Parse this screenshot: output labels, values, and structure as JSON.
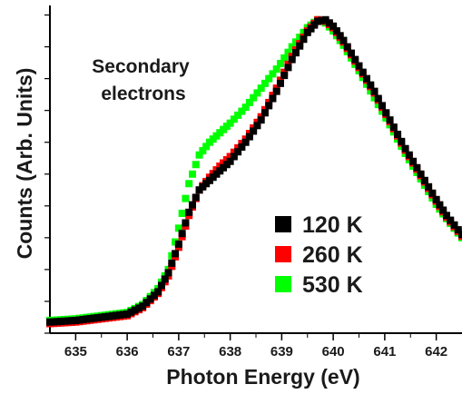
{
  "chart_data": {
    "type": "scatter",
    "title": "",
    "xlabel": "Photon Energy (eV)",
    "ylabel": "Counts (Arb. Units)",
    "xlim": [
      634.5,
      642.5
    ],
    "ylim": [
      0,
      1.03
    ],
    "x_ticks": [
      "635",
      "636",
      "637",
      "638",
      "639",
      "640",
      "641",
      "642"
    ],
    "y_tick_labels_shown": false,
    "annotation": [
      "Secondary",
      "electrons"
    ],
    "legend_position": "center-right",
    "series": [
      {
        "name": "120 K",
        "color": "#000000",
        "x": [
          634.5,
          635.0,
          635.5,
          636.0,
          636.3,
          636.6,
          636.8,
          637.0,
          637.2,
          637.4,
          637.6,
          637.8,
          638.0,
          638.3,
          638.6,
          638.9,
          639.2,
          639.5,
          639.7,
          639.85,
          640.0,
          640.2,
          640.5,
          640.8,
          641.1,
          641.4,
          641.7,
          642.0,
          642.2,
          642.5
        ],
        "y": [
          0.035,
          0.04,
          0.05,
          0.06,
          0.085,
          0.13,
          0.19,
          0.28,
          0.38,
          0.45,
          0.48,
          0.51,
          0.54,
          0.6,
          0.67,
          0.76,
          0.86,
          0.945,
          0.98,
          0.985,
          0.965,
          0.92,
          0.84,
          0.76,
          0.67,
          0.58,
          0.5,
          0.42,
          0.37,
          0.31
        ]
      },
      {
        "name": "260 K",
        "color": "#ff0000",
        "x": [
          634.5,
          635.0,
          635.5,
          636.0,
          636.3,
          636.6,
          636.8,
          637.0,
          637.2,
          637.4,
          637.6,
          637.8,
          638.0,
          638.3,
          638.6,
          638.9,
          639.2,
          639.5,
          639.7,
          639.85,
          640.0,
          640.2,
          640.5,
          640.8,
          641.1,
          641.4,
          641.7,
          642.0,
          642.2,
          642.5
        ],
        "y": [
          0.03,
          0.035,
          0.045,
          0.055,
          0.08,
          0.125,
          0.18,
          0.27,
          0.37,
          0.45,
          0.49,
          0.525,
          0.555,
          0.61,
          0.68,
          0.77,
          0.87,
          0.95,
          0.985,
          0.98,
          0.96,
          0.915,
          0.835,
          0.755,
          0.665,
          0.575,
          0.495,
          0.415,
          0.365,
          0.305
        ]
      },
      {
        "name": "530 K",
        "color": "#00ff00",
        "x": [
          634.5,
          635.0,
          635.5,
          636.0,
          636.3,
          636.6,
          636.8,
          637.0,
          637.2,
          637.4,
          637.6,
          637.8,
          638.0,
          638.3,
          638.6,
          638.9,
          639.2,
          639.5,
          639.7,
          639.85,
          640.0,
          640.2,
          640.5,
          640.8,
          641.1,
          641.4,
          641.7,
          642.0,
          642.2,
          642.5
        ],
        "y": [
          0.04,
          0.045,
          0.055,
          0.065,
          0.09,
          0.14,
          0.2,
          0.33,
          0.47,
          0.56,
          0.6,
          0.63,
          0.66,
          0.71,
          0.77,
          0.83,
          0.9,
          0.96,
          0.985,
          0.975,
          0.95,
          0.905,
          0.825,
          0.74,
          0.655,
          0.565,
          0.485,
          0.405,
          0.36,
          0.3
        ]
      }
    ]
  }
}
